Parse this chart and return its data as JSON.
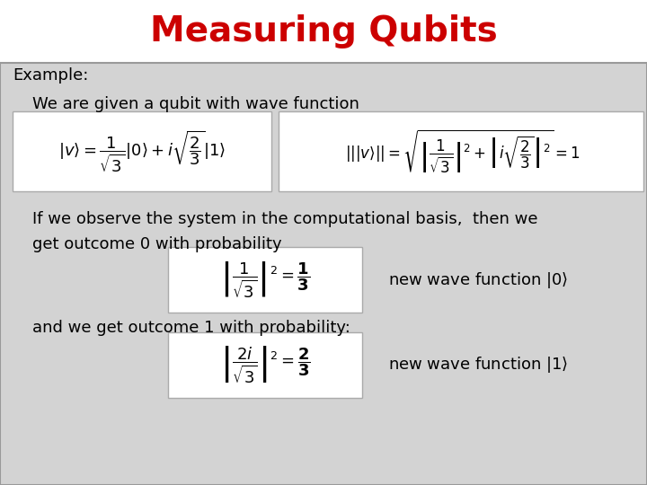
{
  "title": "Measuring Qubits",
  "title_color": "#cc0000",
  "title_fontsize": 28,
  "title_fontweight": "bold",
  "bg_color": "#d3d3d3",
  "text_color": "#000000",
  "line1": "Example:",
  "line2": "We are given a qubit with wave function",
  "line3": "If we observe the system in the computational basis,  then we",
  "line4": "get outcome 0 with probability",
  "line5": "and we get outcome 1 with probability:",
  "new_wave0": "new wave function ",
  "new_wave1": "new wave function "
}
